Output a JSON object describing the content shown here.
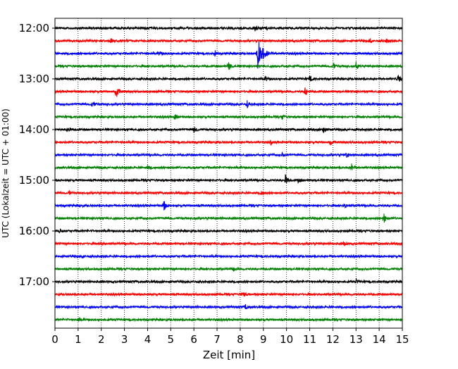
{
  "chart_data": {
    "type": "line",
    "xlabel": "Zeit  [min]",
    "ylabel": "UTC (Lokalzeit = UTC + 01:00)",
    "xlim": [
      0,
      15
    ],
    "x_ticks": [
      "0",
      "1",
      "2",
      "3",
      "4",
      "5",
      "6",
      "7",
      "8",
      "9",
      "10",
      "11",
      "12",
      "13",
      "14",
      "15"
    ],
    "y_tick_labels": [
      "12:00",
      "13:00",
      "14:00",
      "15:00",
      "16:00",
      "17:00"
    ],
    "grid_x": true,
    "grid_y": false,
    "trace_colors": [
      "#000000",
      "#ff0000",
      "#0000ff",
      "#008000"
    ],
    "traces": [
      {
        "start": "12:00",
        "events": [
          [
            8.6,
            0.5
          ],
          [
            9.1,
            0.3
          ]
        ]
      },
      {
        "start": "12:15",
        "events": [
          [
            2.4,
            0.4
          ],
          [
            13.6,
            0.5
          ],
          [
            14.3,
            0.4
          ]
        ]
      },
      {
        "start": "12:30",
        "events": [
          [
            8.75,
            2.6
          ],
          [
            4.5,
            0.4
          ],
          [
            6.9,
            0.5
          ]
        ]
      },
      {
        "start": "12:45",
        "events": [
          [
            7.5,
            0.6
          ],
          [
            12.0,
            0.6
          ],
          [
            13.0,
            0.6
          ]
        ]
      },
      {
        "start": "13:00",
        "events": [
          [
            11.0,
            0.6
          ],
          [
            14.8,
            0.7
          ],
          [
            9.1,
            0.3
          ]
        ]
      },
      {
        "start": "13:15",
        "events": [
          [
            2.65,
            1.2
          ],
          [
            10.8,
            0.8
          ]
        ]
      },
      {
        "start": "13:30",
        "events": [
          [
            1.6,
            0.6
          ],
          [
            8.3,
            0.5
          ]
        ]
      },
      {
        "start": "13:45",
        "events": [
          [
            5.2,
            0.6
          ],
          [
            9.8,
            0.4
          ]
        ]
      },
      {
        "start": "14:00",
        "events": [
          [
            0.55,
            0.5
          ],
          [
            6.0,
            0.5
          ],
          [
            11.6,
            0.5
          ]
        ]
      },
      {
        "start": "14:15",
        "events": [
          [
            9.3,
            0.4
          ],
          [
            11.9,
            0.4
          ]
        ]
      },
      {
        "start": "14:30",
        "events": [
          [
            12.6,
            0.4
          ],
          [
            9.8,
            0.3
          ]
        ]
      },
      {
        "start": "14:45",
        "events": [
          [
            12.8,
            0.6
          ],
          [
            4.0,
            0.3
          ]
        ]
      },
      {
        "start": "15:00",
        "events": [
          [
            9.95,
            0.8
          ],
          [
            10.5,
            0.4
          ]
        ]
      },
      {
        "start": "15:15",
        "events": [
          [
            8.9,
            0.5
          ],
          [
            0.6,
            0.3
          ]
        ]
      },
      {
        "start": "15:30",
        "events": [
          [
            4.7,
            0.8
          ],
          [
            1.1,
            0.3
          ],
          [
            12.5,
            0.3
          ]
        ]
      },
      {
        "start": "15:45",
        "events": [
          [
            14.2,
            0.8
          ]
        ]
      },
      {
        "start": "16:00",
        "events": [
          [
            0.2,
            0.4
          ]
        ]
      },
      {
        "start": "16:15",
        "events": [
          [
            2.0,
            0.3
          ],
          [
            12.5,
            0.4
          ]
        ]
      },
      {
        "start": "16:30",
        "events": [
          [
            1.2,
            0.3
          ]
        ]
      },
      {
        "start": "16:45",
        "events": [
          [
            7.7,
            0.3
          ]
        ]
      },
      {
        "start": "17:00",
        "events": [
          [
            13.0,
            0.3
          ]
        ]
      },
      {
        "start": "17:15",
        "events": [
          [
            8.1,
            0.5
          ]
        ]
      },
      {
        "start": "17:30",
        "events": [
          [
            8.2,
            0.5
          ]
        ]
      },
      {
        "start": "17:45",
        "events": [
          [
            1.0,
            0.2
          ]
        ]
      }
    ]
  }
}
